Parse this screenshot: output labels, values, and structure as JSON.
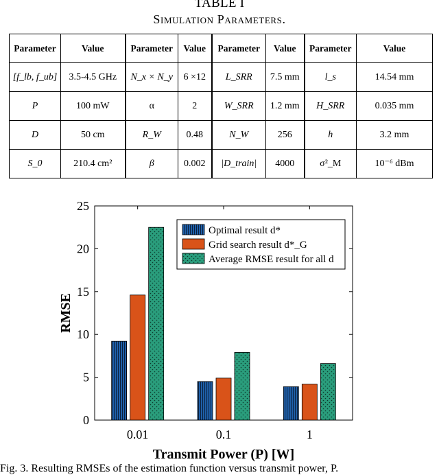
{
  "table": {
    "title": "TABLE I",
    "caption": "Simulation Parameters.",
    "headers": [
      "Parameter",
      "Value",
      "Parameter",
      "Value",
      "Parameter",
      "Value",
      "Parameter",
      "Value"
    ],
    "rows": [
      [
        "[f_lb, f_ub]",
        "3.5-4.5 GHz",
        "N_x × N_y",
        "6 ×12",
        "L_SRR",
        "7.5 mm",
        "l_s",
        "14.54 mm"
      ],
      [
        "P",
        "100 mW",
        "α",
        "2",
        "W_SRR",
        "1.2 mm",
        "H_SRR",
        "0.035 mm"
      ],
      [
        "D",
        "50 cm",
        "R_W",
        "0.48",
        "N_W",
        "256",
        "h",
        "3.2 mm"
      ],
      [
        "S_0",
        "210.4 cm²",
        "β",
        "0.002",
        "|D_train|",
        "4000",
        "σ²_M",
        "10⁻⁶ dBm"
      ]
    ]
  },
  "chart_data": {
    "type": "bar",
    "categories": [
      "0.01",
      "0.1",
      "1"
    ],
    "series": [
      {
        "name": "Optimal result d*",
        "values": [
          9.2,
          4.5,
          3.9
        ],
        "color": "#1f5fa8",
        "pattern": "vertical-lines"
      },
      {
        "name": "Grid search result d*_G",
        "values": [
          14.6,
          4.9,
          4.2
        ],
        "color": "#d95319",
        "pattern": "solid"
      },
      {
        "name": "Average RMSE result for all d",
        "values": [
          22.5,
          7.9,
          6.6
        ],
        "color": "#2a9d7c",
        "pattern": "dots"
      }
    ],
    "xlabel": "Transmit Power (P) [W]",
    "ylabel": "RMSE",
    "ylim": [
      0,
      25
    ],
    "yticks": [
      0,
      5,
      10,
      15,
      20,
      25
    ],
    "grid": false,
    "legend": "top-right"
  },
  "figure_caption": "Fig. 3.  Resulting RMSEs of the estimation function versus transmit power, P."
}
